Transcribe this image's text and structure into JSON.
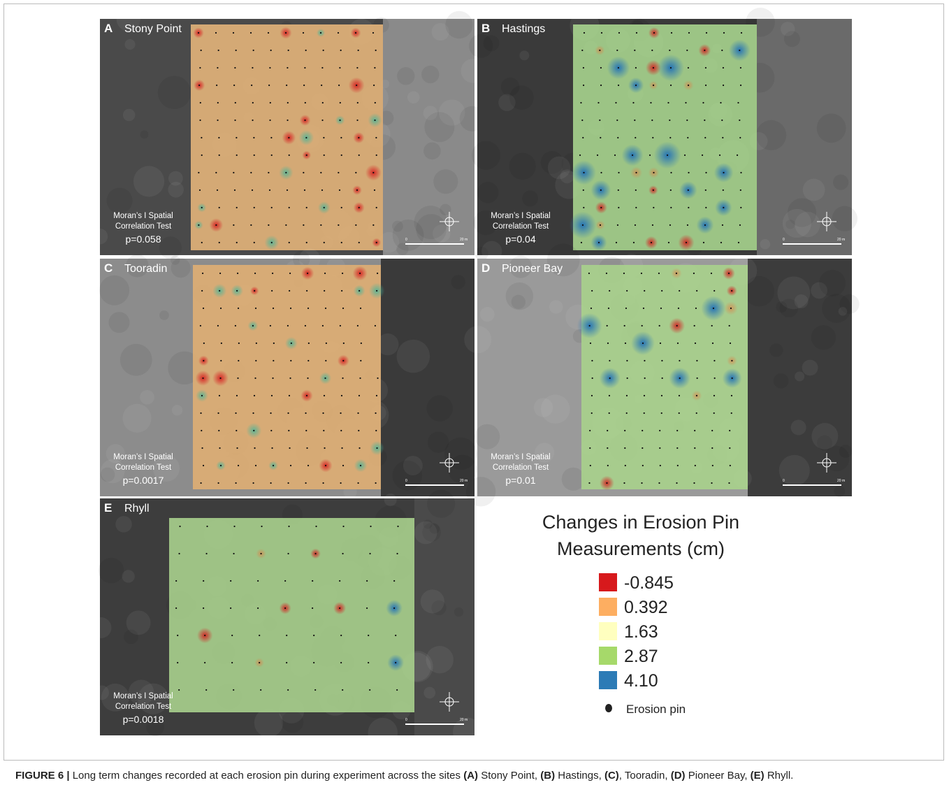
{
  "panels": [
    {
      "letter": "A",
      "site": "Stony Point",
      "test": [
        "Moran’s I Spatial",
        "Correlation Test"
      ],
      "p": "p=0.058"
    },
    {
      "letter": "B",
      "site": "Hastings",
      "test": [
        "Moran’s I Spatial",
        "Correlation Test"
      ],
      "p": "p=0.04"
    },
    {
      "letter": "C",
      "site": "Tooradin",
      "test": [
        "Moran’s I Spatial",
        "Correlation Test"
      ],
      "p": "p=0.0017"
    },
    {
      "letter": "D",
      "site": "Pioneer Bay",
      "test": [
        "Moran’s I Spatial",
        "Correlation Test"
      ],
      "p": "p=0.01"
    },
    {
      "letter": "E",
      "site": "Rhyll",
      "test": [
        "Moran’s I Spatial",
        "Correlation Test"
      ],
      "p": "p=0.0018"
    }
  ],
  "scale": {
    "zero": "0",
    "length": "20 m"
  },
  "legend": {
    "title": [
      "Changes in Erosion Pin",
      "Measurements (cm)"
    ],
    "items": [
      {
        "label": "-0.845",
        "color": "#d7191c"
      },
      {
        "label": "0.392",
        "color": "#fdae61"
      },
      {
        "label": "1.63",
        "color": "#ffffbf"
      },
      {
        "label": "2.87",
        "color": "#a6d96a"
      },
      {
        "label": "4.10",
        "color": "#2c7bb6"
      }
    ],
    "pin": "Erosion pin"
  },
  "caption": {
    "parts": [
      {
        "text": "FIGURE 6 |",
        "bold": true
      },
      {
        "text": " Long term changes recorded at each erosion pin during experiment across the sites ",
        "bold": false
      },
      {
        "text": "(A)",
        "bold": true
      },
      {
        "text": " Stony Point, ",
        "bold": false
      },
      {
        "text": "(B)",
        "bold": true
      },
      {
        "text": " Hastings, ",
        "bold": false
      },
      {
        "text": "(C)",
        "bold": true
      },
      {
        "text": ", Tooradin, ",
        "bold": false
      },
      {
        "text": "(D)",
        "bold": true
      },
      {
        "text": " Pioneer Bay, ",
        "bold": false
      },
      {
        "text": "(E)",
        "bold": true
      },
      {
        "text": " Rhyll.",
        "bold": false
      }
    ]
  }
}
